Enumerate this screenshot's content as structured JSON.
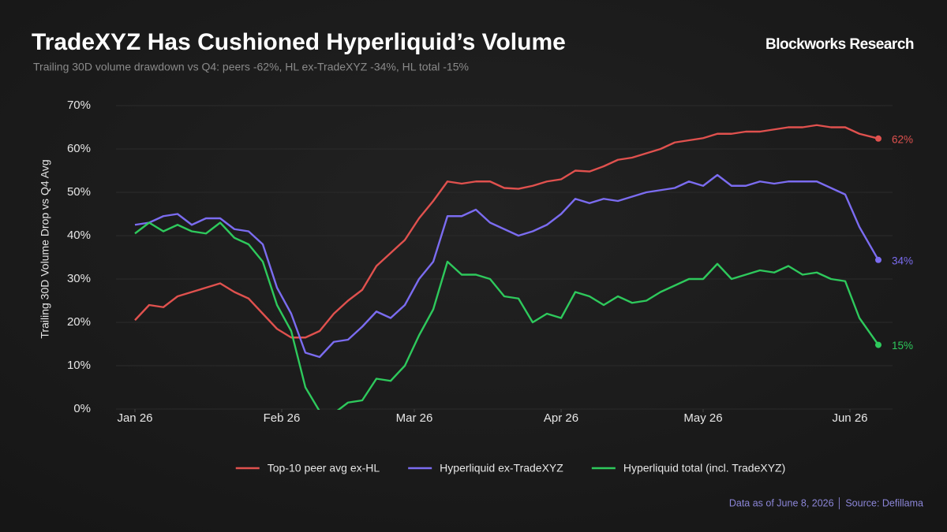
{
  "chart_data": {
    "type": "line",
    "title": "TradeXYZ Has Cushioned Hyperliquid’s Volume",
    "subtitle": "Trailing 30D volume drawdown vs Q4: peers -62%, HL ex-TradeXYZ -34%, HL total -15%",
    "brand": "Blockworks Research",
    "y_label": "Trailing 30D Volume Drop vs Q4 Avg",
    "footer": "Data as of June 8, 2026 │ Source: Defillama",
    "x": [
      0,
      3,
      6,
      9,
      12,
      15,
      18,
      21,
      24,
      27,
      30,
      33,
      36,
      39,
      42,
      45,
      48,
      51,
      54,
      57,
      60,
      63,
      66,
      69,
      72,
      75,
      78,
      81,
      84,
      87,
      90,
      93,
      96,
      99,
      102,
      105,
      108,
      111,
      114,
      117,
      120,
      123,
      126,
      129,
      132,
      135,
      138,
      141,
      144,
      147,
      150,
      153,
      157
    ],
    "xlim": [
      -4,
      160
    ],
    "xticks": [
      {
        "value": 0,
        "label": "Jan 26"
      },
      {
        "value": 31,
        "label": "Feb 26"
      },
      {
        "value": 59,
        "label": "Mar 26"
      },
      {
        "value": 90,
        "label": "Apr 26"
      },
      {
        "value": 120,
        "label": "May 26"
      },
      {
        "value": 151,
        "label": "Jun 26"
      }
    ],
    "ylim": [
      0,
      70
    ],
    "yticks": [
      {
        "value": 0,
        "label": "0%"
      },
      {
        "value": 10,
        "label": "10%"
      },
      {
        "value": 20,
        "label": "20%"
      },
      {
        "value": 30,
        "label": "30%"
      },
      {
        "value": 40,
        "label": "40%"
      },
      {
        "value": 50,
        "label": "50%"
      },
      {
        "value": 60,
        "label": "60%"
      },
      {
        "value": 70,
        "label": "70%"
      }
    ],
    "grid": true,
    "series": [
      {
        "name": "Top-10 peer avg ex-HL",
        "color": "#e0514e",
        "values": [
          20.5,
          24,
          23.5,
          26,
          27,
          28,
          29,
          27,
          25.5,
          22,
          18.5,
          16.5,
          16.5,
          18,
          22,
          25,
          27.5,
          33,
          36,
          39,
          44,
          48,
          52.5,
          52,
          52.5,
          52.5,
          51,
          50.8,
          51.5,
          52.5,
          53,
          55,
          54.8,
          56,
          57.5,
          58,
          59,
          60,
          61.5,
          62,
          62.5,
          63.5,
          63.5,
          64,
          64,
          64.5,
          65,
          65,
          65.5,
          65,
          65,
          63.5,
          62.4
        ],
        "value_labels": [
          null,
          null,
          null,
          null,
          null,
          null,
          null,
          null,
          null,
          null,
          null,
          null,
          null,
          null,
          null,
          null,
          null,
          null,
          null,
          null,
          null,
          null,
          null,
          null,
          null,
          null,
          null,
          null,
          null,
          null,
          null,
          null,
          null,
          null,
          null,
          null,
          null,
          null,
          null,
          null,
          null,
          null,
          null,
          null,
          null,
          null,
          null,
          null,
          null,
          null,
          null,
          null,
          "62%"
        ]
      },
      {
        "name": "Hyperliquid ex-TradeXYZ",
        "color": "#7b6cf0",
        "values": [
          42.5,
          43,
          44.5,
          45,
          42.5,
          44,
          44,
          41.5,
          41,
          38,
          28,
          22,
          13,
          12,
          15.5,
          16,
          19,
          22.5,
          21,
          24,
          30,
          34,
          44.5,
          44.5,
          46,
          43,
          41.5,
          40,
          41,
          42.5,
          45,
          48.5,
          47.5,
          48.5,
          48,
          49,
          50,
          50.5,
          51,
          52.5,
          51.5,
          54,
          51.5,
          51.5,
          52.5,
          52,
          52.5,
          52.5,
          52.5,
          51,
          49.5,
          42,
          34.4
        ],
        "value_labels": [
          null,
          null,
          null,
          null,
          null,
          null,
          null,
          null,
          null,
          null,
          null,
          null,
          null,
          null,
          null,
          null,
          null,
          null,
          null,
          null,
          null,
          null,
          null,
          null,
          null,
          null,
          null,
          null,
          null,
          null,
          null,
          null,
          null,
          null,
          null,
          null,
          null,
          null,
          null,
          null,
          null,
          null,
          null,
          null,
          null,
          null,
          null,
          null,
          null,
          null,
          null,
          null,
          "34%"
        ]
      },
      {
        "name": "Hyperliquid total (incl. TradeXYZ)",
        "color": "#2ec95c",
        "values": [
          40.5,
          43,
          41,
          42.5,
          41,
          40.5,
          43,
          39.5,
          38,
          34,
          24,
          18,
          5,
          -0.5,
          -1,
          1.5,
          2,
          7,
          6.5,
          10,
          17,
          23,
          34,
          31,
          31,
          30,
          26,
          25.5,
          20,
          22,
          21,
          27,
          26,
          24,
          26,
          24.5,
          25,
          27,
          28.5,
          30,
          30,
          33.5,
          30,
          31,
          32,
          31.5,
          33,
          31,
          31.5,
          30,
          29.5,
          21,
          14.8
        ],
        "value_labels": [
          null,
          null,
          null,
          null,
          null,
          null,
          null,
          null,
          null,
          null,
          null,
          null,
          null,
          null,
          null,
          null,
          null,
          null,
          null,
          null,
          null,
          null,
          null,
          null,
          null,
          null,
          null,
          null,
          null,
          null,
          null,
          null,
          null,
          null,
          null,
          null,
          null,
          null,
          null,
          null,
          null,
          null,
          null,
          null,
          null,
          null,
          null,
          null,
          null,
          null,
          null,
          null,
          "15%"
        ]
      }
    ]
  }
}
